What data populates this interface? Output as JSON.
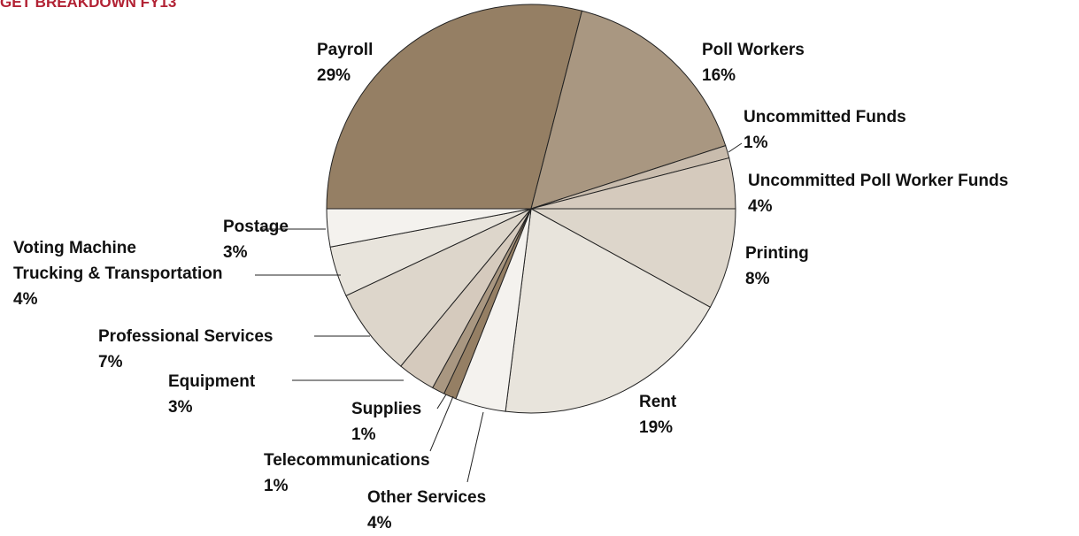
{
  "chart_data": {
    "type": "pie",
    "title": "GET BREAKDOWN FY13",
    "categories": [
      "Payroll",
      "Poll Workers",
      "Uncommitted Funds",
      "Uncommitted Poll Worker Funds",
      "Printing",
      "Rent",
      "Other Services",
      "Telecommunications",
      "Supplies",
      "Equipment",
      "Professional Services",
      "Voting Machine\nTrucking & Transportation",
      "Postage"
    ],
    "values": [
      29,
      16,
      1,
      4,
      8,
      19,
      4,
      1,
      1,
      3,
      7,
      4,
      3
    ],
    "value_labels": [
      "29%",
      "16%",
      "1%",
      "4%",
      "8%",
      "19%",
      "4%",
      "1%",
      "1%",
      "3%",
      "7%",
      "4%",
      "3%"
    ],
    "colors": [
      "#957f64",
      "#a99781",
      "#c9bcad",
      "#d5cabd",
      "#ddd6cb",
      "#e8e4dc",
      "#f4f2ee",
      "#957f64",
      "#a99781",
      "#d5cabd",
      "#ddd6cb",
      "#e8e4dc",
      "#f4f2ee"
    ]
  }
}
